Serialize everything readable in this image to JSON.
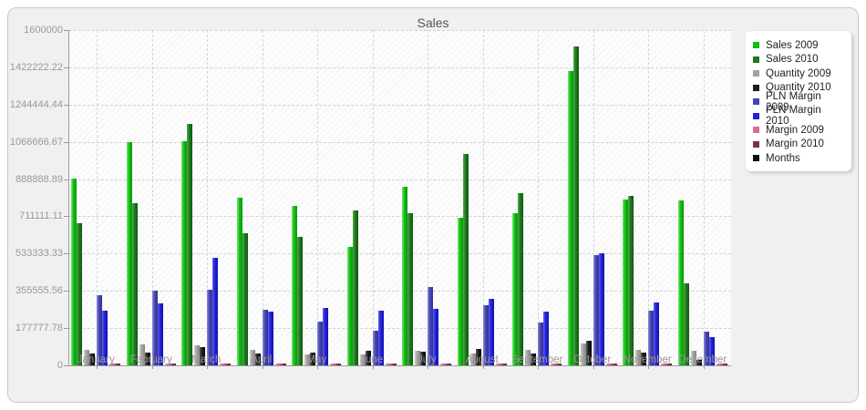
{
  "chart_data": {
    "type": "bar",
    "title": "Sales",
    "categories": [
      "January",
      "February",
      "March",
      "April",
      "May",
      "June",
      "July",
      "August",
      "September",
      "October",
      "November",
      "Dezember"
    ],
    "y_ticks": [
      "1600000",
      "1422222.22",
      "1244444.44",
      "1066666.67",
      "888888.89",
      "711111.11",
      "533333.33",
      "355555.56",
      "177777.78",
      "0"
    ],
    "ylim": [
      0,
      1600000
    ],
    "grid": "dashed",
    "legend_position": "right",
    "series": [
      {
        "name": "Sales 2009",
        "color": "#0fbe0f",
        "light": "#7ae87a",
        "dark": "#089808",
        "values": [
          890000,
          1065000,
          1070000,
          800000,
          760000,
          565000,
          850000,
          705000,
          724000,
          1405000,
          790000,
          785000
        ]
      },
      {
        "name": "Sales 2010",
        "color": "#1b7a1b",
        "light": "#58a858",
        "dark": "#0f5a0f",
        "values": [
          680000,
          775000,
          1150000,
          630000,
          615000,
          740000,
          725000,
          1010000,
          820000,
          1520000,
          808000,
          393000
        ]
      },
      {
        "name": "Quantity 2009",
        "color": "#a2a2a2",
        "light": "#cfcfcf",
        "dark": "#878787",
        "values": [
          72000,
          98000,
          95000,
          72000,
          50000,
          53000,
          68000,
          58000,
          72000,
          104000,
          75000,
          68000
        ]
      },
      {
        "name": "Quantity 2010",
        "color": "#1e1e1e",
        "light": "#5a5a5a",
        "dark": "#000000",
        "values": [
          55000,
          60000,
          85000,
          58000,
          60000,
          68000,
          64000,
          80000,
          58000,
          118000,
          61000,
          25000
        ]
      },
      {
        "name": "PLN Margin 2009",
        "color": "#4545b2",
        "light": "#8e8edb",
        "dark": "#32328e",
        "values": [
          333000,
          355000,
          360000,
          265000,
          210000,
          165000,
          375000,
          285000,
          205000,
          525000,
          260000,
          160000
        ]
      },
      {
        "name": "PLN Margin 2010",
        "color": "#2222d8",
        "light": "#6262f2",
        "dark": "#1414ad",
        "values": [
          260000,
          295000,
          515000,
          255000,
          275000,
          260000,
          268000,
          318000,
          258000,
          535000,
          300000,
          136000
        ]
      },
      {
        "name": "Margin 2009",
        "color": "#e06898",
        "light": "#f0a6c4",
        "dark": "#c4517e",
        "values": [
          8000,
          8000,
          8000,
          8000,
          8000,
          8000,
          8000,
          10000,
          8000,
          10000,
          8000,
          8000
        ]
      },
      {
        "name": "Margin 2010",
        "color": "#7e2f4f",
        "light": "#a85c77",
        "dark": "#5e1f39",
        "values": [
          8000,
          8000,
          8000,
          8000,
          8000,
          8000,
          8000,
          10000,
          8000,
          10000,
          8000,
          8000
        ]
      },
      {
        "name": "Months",
        "color": "#111111",
        "light": "#444444",
        "dark": "#000000",
        "values": [
          0,
          0,
          0,
          0,
          0,
          0,
          0,
          0,
          0,
          0,
          0,
          0
        ]
      }
    ]
  }
}
